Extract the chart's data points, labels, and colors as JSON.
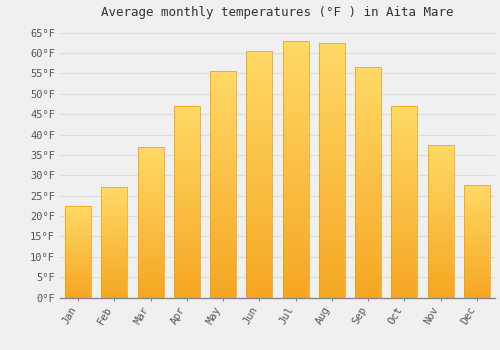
{
  "title": "Average monthly temperatures (°F ) in Aita Mare",
  "months": [
    "Jan",
    "Feb",
    "Mar",
    "Apr",
    "May",
    "Jun",
    "Jul",
    "Aug",
    "Sep",
    "Oct",
    "Nov",
    "Dec"
  ],
  "values": [
    22.5,
    27.0,
    37.0,
    47.0,
    55.5,
    60.5,
    63.0,
    62.5,
    56.5,
    47.0,
    37.5,
    27.5
  ],
  "bar_color_top": "#FFD966",
  "bar_color_bottom": "#F5A623",
  "bar_edge_color": "#E8A000",
  "background_color": "#F0F0F0",
  "grid_color": "#DDDDDD",
  "ylim": [
    0,
    67
  ],
  "yticks": [
    0,
    5,
    10,
    15,
    20,
    25,
    30,
    35,
    40,
    45,
    50,
    55,
    60,
    65
  ],
  "title_fontsize": 9,
  "tick_fontsize": 7.5,
  "tick_font": "monospace",
  "bar_width": 0.72
}
